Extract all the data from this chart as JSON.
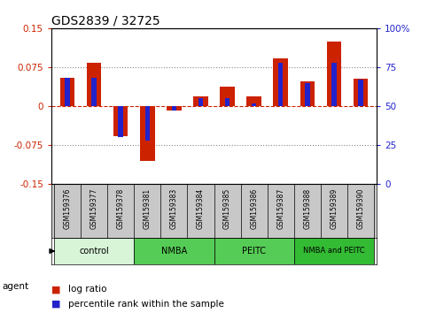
{
  "title": "GDS2839 / 32725",
  "samples": [
    "GSM159376",
    "GSM159377",
    "GSM159378",
    "GSM159381",
    "GSM159383",
    "GSM159384",
    "GSM159385",
    "GSM159386",
    "GSM159387",
    "GSM159388",
    "GSM159389",
    "GSM159390"
  ],
  "log_ratio": [
    0.055,
    0.083,
    -0.058,
    -0.105,
    -0.008,
    0.018,
    0.038,
    0.018,
    0.092,
    0.048,
    0.125,
    0.052
  ],
  "percentile_rank": [
    68,
    68,
    30,
    28,
    47,
    55,
    55,
    52,
    78,
    65,
    78,
    67
  ],
  "ylim": [
    -0.15,
    0.15
  ],
  "yticks_left": [
    -0.15,
    -0.075,
    0,
    0.075,
    0.15
  ],
  "yticks_right": [
    0,
    25,
    50,
    75,
    100
  ],
  "red_color": "#cc2200",
  "blue_color": "#2222cc",
  "bg_color": "#ffffff",
  "grid_color": "#888888",
  "tick_label_color_left": "#cc2200",
  "tick_label_color_right": "#2222cc",
  "xlabel_area_color": "#c8c8c8",
  "control_color": "#d8f5d8",
  "nmba_color": "#55cc55",
  "peitc_color": "#55cc55",
  "nmba_peitc_color": "#33bb33",
  "group_configs": [
    {
      "label": "control",
      "start": 0,
      "end": 3,
      "color": "#d8f5d8"
    },
    {
      "label": "NMBA",
      "start": 3,
      "end": 6,
      "color": "#55cc55"
    },
    {
      "label": "PEITC",
      "start": 6,
      "end": 9,
      "color": "#55cc55"
    },
    {
      "label": "NMBA and PEITC",
      "start": 9,
      "end": 12,
      "color": "#33bb33"
    }
  ]
}
